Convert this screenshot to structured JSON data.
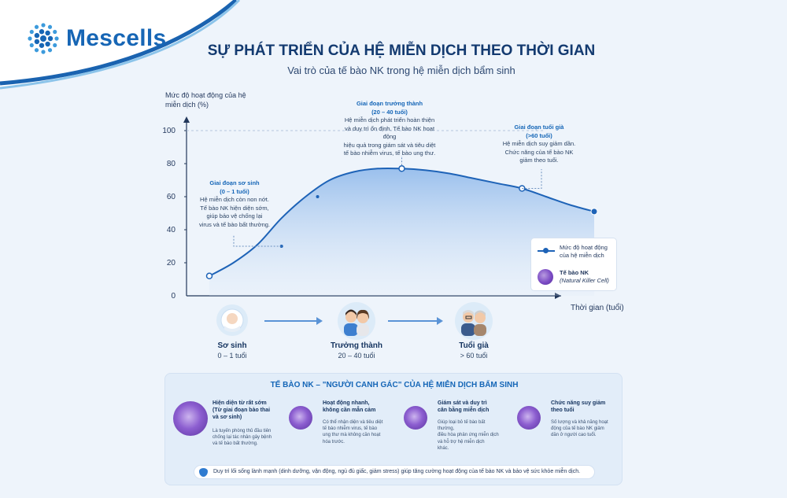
{
  "brand": {
    "name": "Mescells",
    "icon": "cell-dots-logo"
  },
  "header": {
    "title": "SỰ PHÁT TRIỂN CỦA HỆ MIỄN DỊCH THEO THỜI GIAN",
    "subtitle": "Vai trò của tế bào NK trong hệ miễn dịch bẩm sinh"
  },
  "chart_data": {
    "type": "area",
    "title": "SỰ PHÁT TRIỂN CỦA HỆ MIỄN DỊCH THEO THỜI GIAN",
    "ylabel": "Mức độ hoạt động của hệ miễn dịch (%)",
    "xlabel": "Thời gian (tuổi)",
    "ylim": [
      0,
      100
    ],
    "yticks": [
      "0",
      "20",
      "40",
      "60",
      "80",
      "100"
    ],
    "grid": false,
    "legend_position": "bottom-right",
    "series": [
      {
        "name": "Mức độ hoạt động của hệ miễn dịch",
        "points": [
          {
            "stage": "Sơ sinh",
            "y": 12
          },
          {
            "stage": "Trưởng thành",
            "y": 77
          },
          {
            "stage": "Tuổi già (early)",
            "y": 65
          },
          {
            "stage": "Tuổi già",
            "y": 51
          }
        ]
      }
    ],
    "curve": [
      {
        "x": 0.0,
        "y": 12
      },
      {
        "x": 0.1,
        "y": 20
      },
      {
        "x": 0.2,
        "y": 31
      },
      {
        "x": 0.3,
        "y": 47
      },
      {
        "x": 0.4,
        "y": 60
      },
      {
        "x": 0.5,
        "y": 70
      },
      {
        "x": 0.6,
        "y": 75
      },
      {
        "x": 0.7,
        "y": 77
      },
      {
        "x": 0.8,
        "y": 77
      },
      {
        "x": 0.9,
        "y": 76
      },
      {
        "x": 1.0,
        "y": 74
      },
      {
        "x": 1.1,
        "y": 71
      },
      {
        "x": 1.2,
        "y": 68
      },
      {
        "x": 1.3,
        "y": 65
      },
      {
        "x": 1.4,
        "y": 60
      },
      {
        "x": 1.5,
        "y": 55
      },
      {
        "x": 1.6,
        "y": 51
      }
    ],
    "markers": [
      {
        "x": 0.0,
        "y": 12,
        "style": "hollow"
      },
      {
        "x": 0.3,
        "y": 30,
        "style": "small"
      },
      {
        "x": 0.45,
        "y": 60,
        "style": "small"
      },
      {
        "x": 0.8,
        "y": 77,
        "style": "hollow"
      },
      {
        "x": 1.3,
        "y": 65,
        "style": "hollow"
      },
      {
        "x": 1.6,
        "y": 51,
        "style": "filled"
      }
    ],
    "annotations": [
      {
        "title": "Giai đoạn sơ sinh",
        "range": "(0 – 1 tuổi)",
        "lines": [
          "Hệ miễn dịch còn non nớt.",
          "Tế bào NK hiện diện sớm,",
          "giúp bảo vệ chống lại",
          "virus và tế bào bất thường."
        ]
      },
      {
        "title": "Giai đoạn trưởng thành",
        "range": "(20 – 40 tuổi)",
        "lines": [
          "Hệ miễn dịch phát triển hoàn thiện",
          "và duy trì ổn định. Tế bào NK hoạt động",
          "hiệu quả trong giám sát và tiêu diệt",
          "tế bào nhiễm virus, tế bào ung thư."
        ]
      },
      {
        "title": "Giai đoạn tuổi già",
        "range": "(>60 tuổi)",
        "lines": [
          "Hệ miễn dịch suy giảm dần.",
          "Chức năng của tế bào NK",
          "giảm theo tuổi."
        ]
      }
    ],
    "legend": [
      {
        "label": "Mức độ hoạt động của hệ miễn dịch",
        "line1": "Mức độ hoạt động",
        "line2": "của hệ miễn dịch"
      },
      {
        "label": "Tế bào NK",
        "note": "(Natural Killer Cell)"
      }
    ]
  },
  "stages": [
    {
      "label": "Sơ sinh",
      "range": "0 – 1 tuổi",
      "icon": "baby-icon"
    },
    {
      "label": "Trưởng thành",
      "range": "20 – 40 tuổi",
      "icon": "adults-icon"
    },
    {
      "label": "Tuổi già",
      "range": "> 60 tuổi",
      "icon": "elderly-icon"
    }
  ],
  "panel": {
    "title": "TẾ BÀO NK – \"NGƯỜI CANH GÁC\" CỦA HỆ MIỄN DỊCH BẨM SINH",
    "cards": [
      {
        "title_lines": [
          "Hiện diện từ rất sớm",
          "(Từ giai đoạn bào thai",
          "và sơ sinh)"
        ],
        "body_lines": [
          "Là tuyến phòng thủ đầu tiên",
          "chống lại tác nhân gây bệnh",
          "và tế bào bất thường."
        ]
      },
      {
        "title_lines": [
          "Hoạt động nhanh,",
          "không cần mẫn cảm"
        ],
        "body_lines": [
          "Có thể nhận diện và tiêu diệt",
          "tế bào nhiễm virus, tế bào",
          "ung thư mà không cần hoạt",
          "hóa trước."
        ]
      },
      {
        "title_lines": [
          "Giám sát và duy trì",
          "cân bằng miễn dịch"
        ],
        "body_lines": [
          "Giúp loại bỏ tế bào bất thường,",
          "điều hòa phản ứng miễn dịch",
          "và hỗ trợ hệ miễn dịch",
          "khác."
        ]
      },
      {
        "title_lines": [
          "Chức năng suy giảm",
          "theo tuổi"
        ],
        "body_lines": [
          "Số lượng và khả năng hoạt",
          "động của tế bào NK giảm",
          "dần ở người cao tuổi."
        ]
      }
    ],
    "footer": "Duy trì lối sống lành mạnh (dinh dưỡng, vận động, ngủ đủ giấc, giảm stress) giúp tăng cường hoạt động của tế bào NK và bảo vệ sức khỏe miễn dịch.",
    "footer_icon": "shield-icon"
  },
  "colors": {
    "primary": "#1566b7",
    "line": "#1e63b7",
    "background": "#eef4fb",
    "nk_cell": "#7b4bc4"
  }
}
